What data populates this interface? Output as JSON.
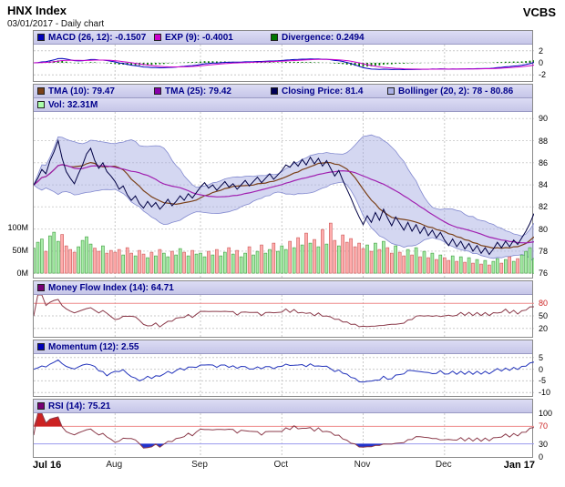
{
  "header": {
    "title": "HNX Index",
    "subtitle": "03/01/2017 - Daily chart",
    "brand": "VCBS"
  },
  "chart_data": {
    "type": "multi-panel financial chart: line, area, bar",
    "n_points": 124,
    "x_start_label": "Jul 16",
    "x_end_label": "Jan 17",
    "x_month_labels": [
      "Aug",
      "Sep",
      "Oct",
      "Nov",
      "Dec"
    ],
    "x_month_tick_indices": [
      20,
      41,
      61,
      81,
      101
    ],
    "macd_panel": {
      "legend": [
        {
          "swatch": "#0000bb",
          "label": "MACD (26, 12): -0.1507"
        },
        {
          "swatch": "#cc00cc",
          "label": "EXP (9): -0.4001"
        },
        {
          "swatch": "#007700",
          "label": "Divergence: 0.2494"
        }
      ],
      "ylim": [
        -3,
        3
      ],
      "yticks": [
        {
          "v": 2,
          "label": "2"
        },
        {
          "v": 0,
          "label": "0"
        },
        {
          "v": -2,
          "label": "-2"
        }
      ],
      "macd_color": "#0000bb",
      "exp_color": "#cc00cc",
      "divergence_color": "#007700"
    },
    "price_panel": {
      "legend": [
        {
          "swatch": "#7a4018",
          "label": "TMA (10): 79.47"
        },
        {
          "swatch": "#8800aa",
          "label": "TMA (25): 79.42"
        },
        {
          "swatch": "#000055",
          "label": "Closing Price: 81.4"
        },
        {
          "swatch": "#aab0e6",
          "label": "Bollinger (20, 2): 78 - 80.86"
        }
      ],
      "legend2": [
        {
          "swatch": "#aaffaa",
          "label": "Vol: 32.31M"
        }
      ],
      "ylim": [
        75.6,
        90.6
      ],
      "yticks": [
        {
          "v": 90,
          "label": "90"
        },
        {
          "v": 88,
          "label": "88"
        },
        {
          "v": 86,
          "label": "86"
        },
        {
          "v": 84,
          "label": "84"
        },
        {
          "v": 82,
          "label": "82"
        },
        {
          "v": 80,
          "label": "80"
        },
        {
          "v": 78,
          "label": "78"
        },
        {
          "v": 76,
          "label": "76"
        }
      ],
      "volume_ticks": [
        {
          "v": 100,
          "label": "100M"
        },
        {
          "v": 50,
          "label": "50M"
        },
        {
          "v": 0,
          "label": "0M"
        }
      ],
      "volume_baseline_price": 76,
      "close_color": "#000044",
      "tma10_color": "#7a4018",
      "tma25_color": "#a020b0",
      "bollinger_fill": "#a0a6e0",
      "vol_up_color": "#a8eca8",
      "vol_down_color": "#ffadad",
      "close": [
        84.0,
        84.6,
        85.4,
        85.0,
        86.2,
        87.0,
        88.0,
        86.4,
        85.2,
        84.6,
        84.1,
        85.0,
        85.8,
        86.8,
        87.3,
        86.2,
        85.5,
        86.0,
        85.2,
        84.8,
        84.3,
        83.6,
        83.9,
        83.1,
        82.6,
        83.0,
        82.3,
        81.9,
        82.5,
        82.0,
        82.4,
        81.8,
        82.2,
        82.7,
        82.1,
        82.5,
        83.0,
        82.6,
        83.2,
        82.8,
        83.3,
        83.8,
        84.2,
        83.7,
        84.0,
        83.5,
        83.9,
        84.3,
        83.8,
        84.1,
        83.6,
        84.0,
        84.4,
        83.9,
        84.3,
        84.7,
        84.2,
        84.6,
        85.0,
        84.5,
        84.9,
        85.3,
        85.8,
        85.6,
        86.1,
        85.7,
        86.3,
        85.8,
        86.5,
        85.9,
        86.4,
        85.7,
        86.2,
        85.5,
        84.8,
        85.3,
        84.4,
        83.6,
        82.8,
        81.9,
        81.1,
        80.4,
        81.2,
        80.6,
        81.5,
        80.8,
        81.8,
        81.0,
        80.3,
        81.1,
        80.5,
        79.9,
        80.6,
        79.8,
        80.4,
        79.6,
        80.2,
        79.4,
        79.9,
        79.2,
        79.7,
        79.0,
        78.5,
        79.1,
        78.4,
        78.9,
        78.2,
        78.7,
        78.0,
        78.5,
        77.8,
        78.3,
        77.7,
        78.2,
        78.8,
        78.3,
        78.9,
        78.4,
        79.0,
        78.6,
        79.2,
        79.8,
        80.5,
        81.4
      ],
      "volume_m": [
        55,
        68,
        75,
        48,
        82,
        90,
        70,
        85,
        60,
        52,
        46,
        58,
        72,
        80,
        64,
        55,
        48,
        60,
        44,
        50,
        46,
        52,
        40,
        56,
        44,
        38,
        50,
        42,
        34,
        46,
        38,
        52,
        44,
        36,
        48,
        40,
        54,
        46,
        38,
        50,
        42,
        44,
        36,
        48,
        40,
        52,
        38,
        46,
        56,
        42,
        50,
        36,
        44,
        58,
        40,
        48,
        62,
        44,
        52,
        66,
        48,
        60,
        52,
        70,
        56,
        78,
        62,
        88,
        66,
        74,
        58,
        96,
        64,
        110,
        72,
        60,
        84,
        68,
        76,
        58,
        66,
        54,
        62,
        48,
        66,
        52,
        70,
        56,
        44,
        60,
        46,
        38,
        52,
        40,
        56,
        36,
        48,
        34,
        44,
        30,
        40,
        34,
        28,
        38,
        26,
        36,
        24,
        34,
        22,
        30,
        20,
        28,
        18,
        26,
        32,
        22,
        30,
        36,
        26,
        32,
        40,
        48,
        56,
        32.31
      ]
    },
    "mfi_panel": {
      "legend": [
        {
          "swatch": "#770077",
          "label": "Money Flow Index (14): 64.71"
        }
      ],
      "ylim": [
        0,
        100
      ],
      "yticks": [
        {
          "v": 80,
          "label": "80",
          "color": "#cc2222"
        },
        {
          "v": 50,
          "label": "50"
        },
        {
          "v": 20,
          "label": "20"
        }
      ],
      "line_color": "#8b3a4a",
      "upper_band_color": "#ee8888"
    },
    "momentum_panel": {
      "legend": [
        {
          "swatch": "#0000bb",
          "label": "Momentum (12): 2.55"
        }
      ],
      "ylim": [
        -11.5,
        6.5
      ],
      "yticks": [
        {
          "v": 5,
          "label": "5"
        },
        {
          "v": 0,
          "label": "0"
        },
        {
          "v": -5,
          "label": "-5"
        },
        {
          "v": -10,
          "label": "-10"
        }
      ],
      "line_color": "#2233bb"
    },
    "rsi_panel": {
      "legend": [
        {
          "swatch": "#770077",
          "label": "RSI (14): 75.21"
        }
      ],
      "ylim": [
        0,
        100
      ],
      "yticks": [
        {
          "v": 100,
          "label": "100"
        },
        {
          "v": 70,
          "label": "70",
          "color": "#cc2222"
        },
        {
          "v": 30,
          "label": "30"
        },
        {
          "v": 0,
          "label": "0"
        }
      ],
      "line_color": "#8b3a4a",
      "overbought_fill": "#cc2222",
      "oversold_fill": "#2233cc",
      "upper_band_color": "#ee8888",
      "lower_band_color": "#9a9aee"
    }
  }
}
